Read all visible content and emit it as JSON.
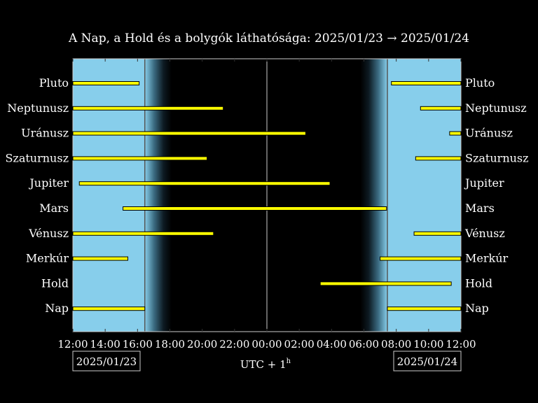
{
  "chart_data": {
    "type": "gantt",
    "title": "A Nap, a Hold és a bolygók láthatósága: 2025/01/23 → 2025/01/24",
    "x_unit_label": "UTC + 1",
    "x_unit_sup": "h",
    "x_range_hours": [
      12,
      36
    ],
    "x_ticks": [
      {
        "t": 12,
        "label": "12:00"
      },
      {
        "t": 14,
        "label": "14:00"
      },
      {
        "t": 16,
        "label": "16:00"
      },
      {
        "t": 18,
        "label": "18:00"
      },
      {
        "t": 20,
        "label": "20:00"
      },
      {
        "t": 22,
        "label": "22:00"
      },
      {
        "t": 24,
        "label": "00:00"
      },
      {
        "t": 26,
        "label": "02:00"
      },
      {
        "t": 28,
        "label": "04:00"
      },
      {
        "t": 30,
        "label": "06:00"
      },
      {
        "t": 32,
        "label": "08:00"
      },
      {
        "t": 34,
        "label": "10:00"
      },
      {
        "t": 36,
        "label": "12:00"
      }
    ],
    "date_left": "2025/01/23",
    "date_right": "2025/01/24",
    "sunset_hour": 16.45,
    "sunrise_hour": 31.45,
    "midnight_hour": 24,
    "twilight_dusk_end": 18.1,
    "twilight_dawn_start": 29.8,
    "colors": {
      "day": "#87ceeb",
      "night": "#000000",
      "bar": "#ffff00",
      "bar_edge": "#000000",
      "line": "#cccccc"
    },
    "bodies": [
      {
        "name": "Pluto",
        "segments": [
          [
            12,
            16.1
          ],
          [
            31.7,
            36
          ]
        ]
      },
      {
        "name": "Neptunusz",
        "segments": [
          [
            12,
            21.3
          ],
          [
            33.5,
            36
          ]
        ]
      },
      {
        "name": "Uránusz",
        "segments": [
          [
            12,
            26.4
          ],
          [
            35.3,
            36
          ]
        ]
      },
      {
        "name": "Szaturnusz",
        "segments": [
          [
            12,
            20.3
          ],
          [
            33.2,
            36
          ]
        ]
      },
      {
        "name": "Jupiter",
        "segments": [
          [
            12.4,
            27.9
          ]
        ]
      },
      {
        "name": "Mars",
        "segments": [
          [
            15.1,
            31.4
          ]
        ]
      },
      {
        "name": "Vénusz",
        "segments": [
          [
            12,
            20.7
          ],
          [
            33.1,
            36
          ]
        ]
      },
      {
        "name": "Merkúr",
        "segments": [
          [
            12,
            15.4
          ],
          [
            31.0,
            36
          ]
        ]
      },
      {
        "name": "Hold",
        "segments": [
          [
            27.3,
            35.4
          ]
        ]
      },
      {
        "name": "Nap",
        "segments": [
          [
            12,
            16.45
          ],
          [
            31.45,
            36
          ]
        ]
      }
    ]
  }
}
